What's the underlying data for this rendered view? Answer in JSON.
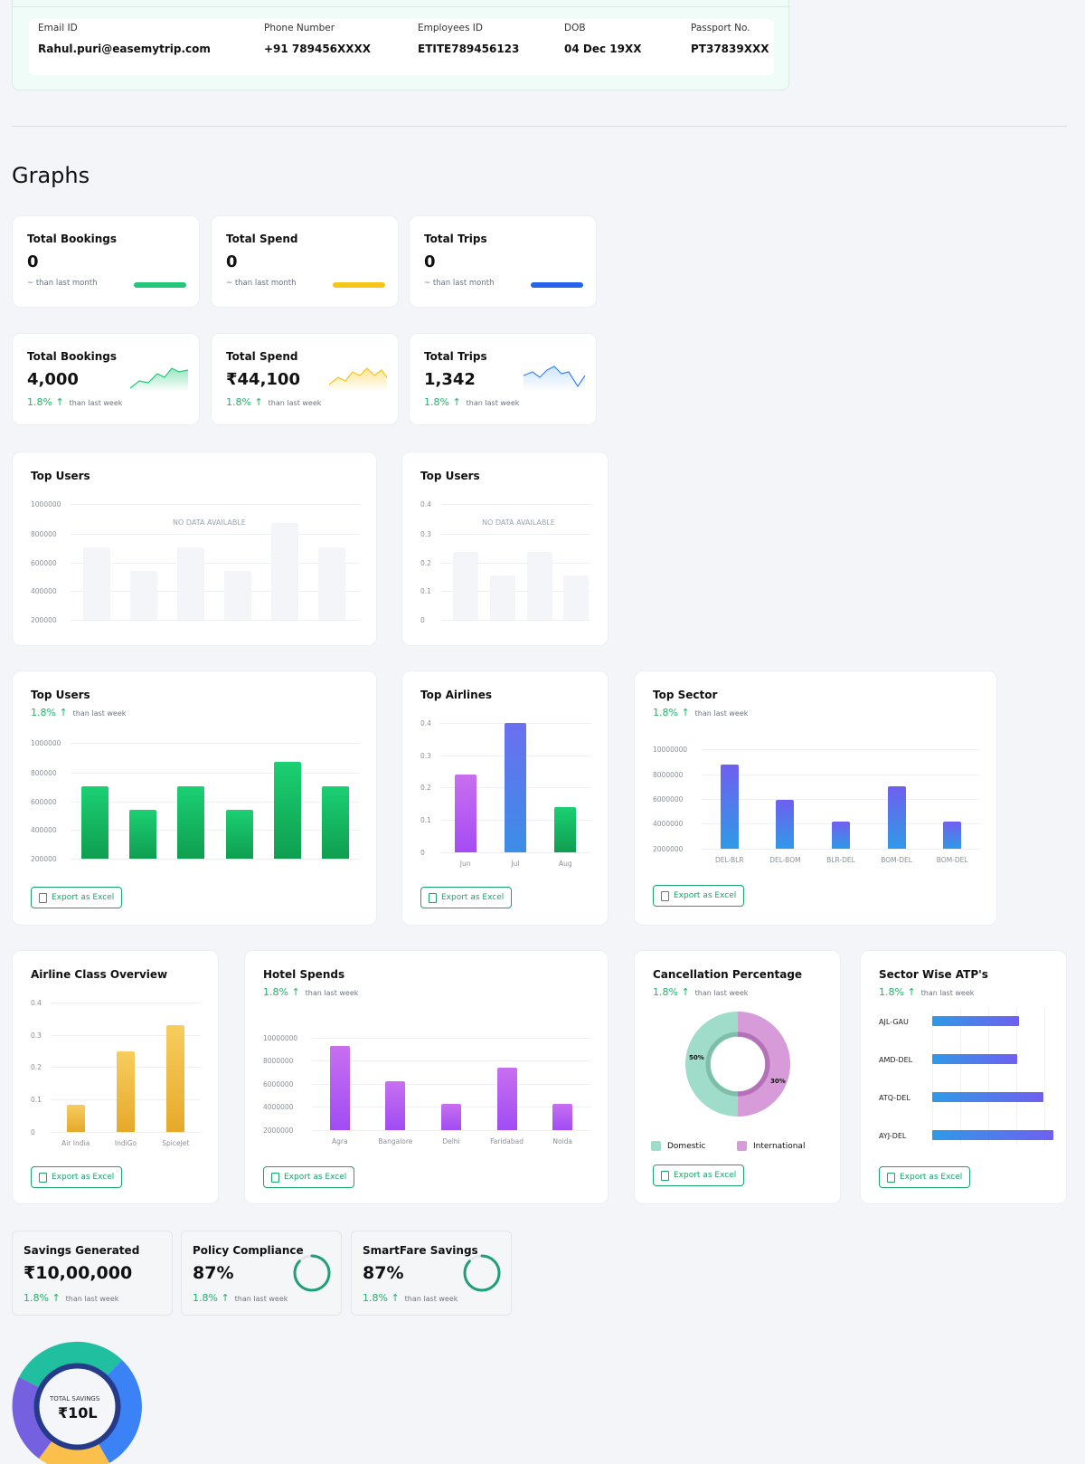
{
  "profile": {
    "fields": [
      {
        "label": "Email ID",
        "value": "Rahul.puri@easemytrip.com"
      },
      {
        "label": "Phone Number",
        "value": "+91 789456XXXX"
      },
      {
        "label": "Employees ID",
        "value": "ETITE789456123"
      },
      {
        "label": "DOB",
        "value": "04 Dec 19XX"
      },
      {
        "label": "Passport No.",
        "value": "PT37839XXX"
      }
    ]
  },
  "section_title": "Graphs",
  "kpi_empty": [
    {
      "title": "Total Bookings",
      "value": "0",
      "note": "~ than last month",
      "color": "#22c77a"
    },
    {
      "title": "Total Spend",
      "value": "0",
      "note": "~ than last month",
      "color": "#f5c518"
    },
    {
      "title": "Total Trips",
      "value": "0",
      "note": "~ than last month",
      "color": "#2563eb"
    }
  ],
  "kpi": [
    {
      "title": "Total Bookings",
      "value": "4,000",
      "pct": "1.8% ↑",
      "note": "than last week",
      "color": "#22c77a"
    },
    {
      "title": "Total Spend",
      "value": "₹44,100",
      "pct": "1.8% ↑",
      "note": "than last week",
      "color": "#f5c518"
    },
    {
      "title": "Total Trips",
      "value": "1,342",
      "pct": "1.8% ↑",
      "note": "than last week",
      "color": "#3b82f6"
    }
  ],
  "common": {
    "pct": "1.8% ↑",
    "note": "than last week",
    "export": "Export as Excel",
    "nodata": "NO DATA AVAILABLE"
  },
  "top_users_empty": {
    "title": "Top Users",
    "ticks": [
      "1000000",
      "800000",
      "600000",
      "400000",
      "200000"
    ]
  },
  "top_users_empty2": {
    "title": "Top Users",
    "ticks": [
      "0.4",
      "0.3",
      "0.2",
      "0.1",
      "0"
    ]
  },
  "top_users": {
    "title": "Top Users",
    "ticks": [
      "1000000",
      "800000",
      "600000",
      "400000",
      "200000"
    ]
  },
  "top_airlines": {
    "title": "Top Airlines",
    "ticks": [
      "0.4",
      "0.3",
      "0.2",
      "0.1",
      "0"
    ]
  },
  "top_sector": {
    "title": "Top Sector",
    "ticks": [
      "10000000",
      "8000000",
      "6000000",
      "4000000",
      "2000000"
    ]
  },
  "airline_class": {
    "title": "Airline Class Overview",
    "ticks": [
      "0.4",
      "0.3",
      "0.2",
      "0.1",
      "0"
    ]
  },
  "hotel_spends": {
    "title": "Hotel Spends",
    "ticks": [
      "10000000",
      "8000000",
      "6000000",
      "4000000",
      "2000000"
    ]
  },
  "cancellation": {
    "title": "Cancellation Percentage",
    "label_a": "50%",
    "label_b": "30%",
    "legend_a": "Domestic",
    "legend_b": "International",
    "color_a": "#9fdcc9",
    "color_b": "#d79bd9"
  },
  "sector_atp": {
    "title": "Sector Wise ATP's"
  },
  "savings": [
    {
      "title": "Savings Generated",
      "value": "₹10,00,000"
    },
    {
      "title": "Policy Compliance",
      "value": "87%"
    },
    {
      "title": "SmartFare Savings",
      "value": "87%"
    }
  ],
  "total_savings": {
    "label": "TOTAL SAVINGS",
    "value": "₹10L"
  },
  "chart_data": [
    {
      "type": "bar",
      "title": "Top Users",
      "categories": [
        "",
        "",
        "",
        "",
        "",
        ""
      ],
      "values": [
        700000,
        540000,
        700000,
        540000,
        870000,
        700000
      ],
      "ylim": [
        200000,
        1000000
      ],
      "color": "#16b25e"
    },
    {
      "type": "bar",
      "title": "Top Airlines",
      "categories": [
        "Jun",
        "Jul",
        "Aug"
      ],
      "values": [
        0.24,
        0.4,
        0.14
      ],
      "ylim": [
        0,
        0.4
      ]
    },
    {
      "type": "bar",
      "title": "Top Sector",
      "categories": [
        "DEL-BLR",
        "DEL-BOM",
        "BLR-DEL",
        "BOM-DEL",
        "BOM-DEL"
      ],
      "values": [
        8800000,
        5900000,
        4200000,
        7000000,
        4200000
      ],
      "ylim": [
        2000000,
        10000000
      ]
    },
    {
      "type": "bar",
      "title": "Airline Class Overview",
      "categories": [
        "Air India",
        "IndiGo",
        "SpiceJet"
      ],
      "values": [
        0.085,
        0.25,
        0.33
      ],
      "ylim": [
        0,
        0.4
      ]
    },
    {
      "type": "bar",
      "title": "Hotel Spends",
      "categories": [
        "Agra",
        "Bangalore",
        "Delhi",
        "Faridabad",
        "Noida"
      ],
      "values": [
        9300000,
        6200000,
        4300000,
        7400000,
        4300000
      ],
      "ylim": [
        2000000,
        10000000
      ]
    },
    {
      "type": "pie",
      "title": "Cancellation Percentage",
      "categories": [
        "Domestic",
        "International"
      ],
      "values": [
        50,
        30
      ]
    },
    {
      "type": "bar",
      "title": "Sector Wise ATP's",
      "categories": [
        "AJL-GAU",
        "AMD-DEL",
        "ATQ-DEL",
        "AYJ-DEL"
      ],
      "values": [
        0.72,
        0.7,
        0.92,
        1.0
      ]
    }
  ]
}
